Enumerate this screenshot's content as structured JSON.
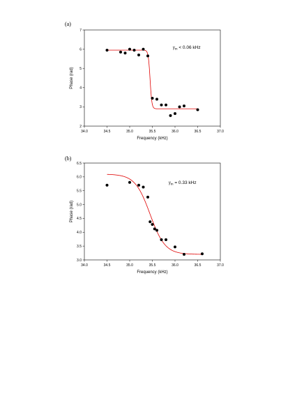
{
  "chart_data": [
    {
      "type": "scatter",
      "panel_label": "(a)",
      "xlabel": "Frequency (kHz)",
      "ylabel": "Phase (rad)",
      "xlim": [
        34.0,
        37.0
      ],
      "ylim": [
        2,
        7
      ],
      "xticks": [
        "34.0",
        "34.5",
        "35.0",
        "35.5",
        "36.0",
        "36.5",
        "37.0"
      ],
      "yticks": [
        "2",
        "3",
        "4",
        "5",
        "6",
        "7"
      ],
      "annotation": {
        "symbol": "γ",
        "subscript": "m",
        "text": " < 0.06 kHz"
      },
      "points": {
        "x": [
          34.5,
          34.8,
          34.9,
          35.0,
          35.1,
          35.2,
          35.3,
          35.4,
          35.5,
          35.6,
          35.7,
          35.8,
          35.9,
          36.0,
          36.1,
          36.2,
          36.5
        ],
        "y": [
          5.95,
          5.85,
          5.8,
          6.0,
          5.95,
          5.7,
          6.0,
          5.65,
          3.45,
          3.4,
          3.1,
          3.1,
          2.55,
          2.65,
          3.0,
          3.05,
          2.85
        ]
      },
      "fit": {
        "x0": 35.45,
        "width": 0.02,
        "high": 5.95,
        "low": 2.9,
        "xmin": 34.5,
        "xmax": 36.5
      }
    },
    {
      "type": "scatter",
      "panel_label": "(b)",
      "xlabel": "Frequency (kHz)",
      "ylabel": "Phase (rad)",
      "xlim": [
        34.0,
        37.0
      ],
      "ylim": [
        3.0,
        6.5
      ],
      "xticks": [
        "34.0",
        "34.5",
        "35.0",
        "35.5",
        "36.0",
        "36.5",
        "37.0"
      ],
      "yticks": [
        "3.0",
        "3.5",
        "4.0",
        "4.5",
        "5.0",
        "5.5",
        "6.0",
        "6.5"
      ],
      "annotation": {
        "symbol": "γ",
        "subscript": "m",
        "text": " = 0.33 kHz"
      },
      "points": {
        "x": [
          34.5,
          35.0,
          35.2,
          35.3,
          35.4,
          35.45,
          35.5,
          35.55,
          35.6,
          35.7,
          35.8,
          36.0,
          36.2,
          36.6
        ],
        "y": [
          5.7,
          5.8,
          5.7,
          5.63,
          5.27,
          4.38,
          4.28,
          4.12,
          4.07,
          3.73,
          3.73,
          3.47,
          3.2,
          3.22
        ]
      },
      "fit": {
        "x0": 35.45,
        "width": 0.165,
        "high": 6.1,
        "low": 3.2,
        "xmin": 34.5,
        "xmax": 36.6
      }
    }
  ]
}
